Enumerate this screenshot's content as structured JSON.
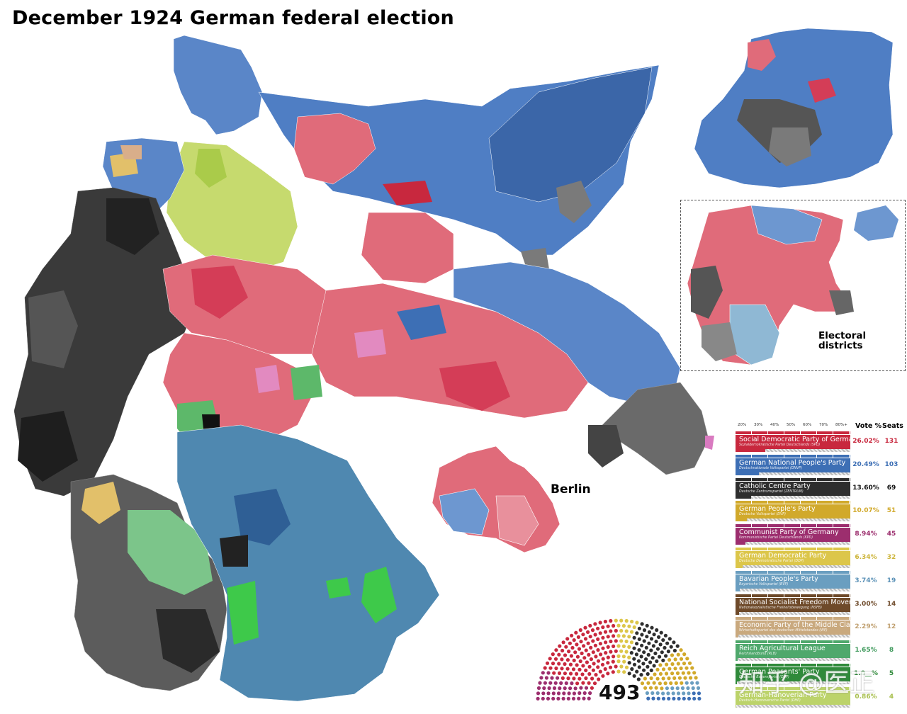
{
  "title": "December 1924 German federal election",
  "labels": {
    "berlin": "Berlin",
    "electoral_districts": "Electoral districts"
  },
  "legend": {
    "scale_ticks": [
      "20%",
      "30%",
      "40%",
      "50%",
      "60%",
      "70%",
      "80%+"
    ],
    "header_vote": "Vote %",
    "header_seats": "Seats",
    "parties": [
      {
        "name": "Social Democratic Party of Germany",
        "sub": "Sozialdemokratische Partei Deutschlands (SPD)",
        "vote": "26.02%",
        "seats": "131",
        "vote_fraction": 0.2602,
        "color": "#c8283e",
        "pctColor": "#c8283e"
      },
      {
        "name": "German National People's Party",
        "sub": "Deutschnationale Volkspartei (DNVP)",
        "vote": "20.49%",
        "seats": "103",
        "vote_fraction": 0.2049,
        "color": "#3d6fb5",
        "pctColor": "#3d6fb5"
      },
      {
        "name": "Catholic Centre Party",
        "sub": "Deutsche Zentrumspartei (ZENTRUM)",
        "vote": "13.60%",
        "seats": "69",
        "vote_fraction": 0.136,
        "color": "#2e2e2e",
        "pctColor": "#111111"
      },
      {
        "name": "German People's Party",
        "sub": "Deutsche Volkspartei (DVP)",
        "vote": "10.07%",
        "seats": "51",
        "vote_fraction": 0.1007,
        "color": "#d1a92b",
        "pctColor": "#d1a92b"
      },
      {
        "name": "Communist Party of Germany",
        "sub": "Kommunistische Partei Deutschlands (KPD)",
        "vote": "8.94%",
        "seats": "45",
        "vote_fraction": 0.0894,
        "color": "#9c2e6e",
        "pctColor": "#9c2e6e"
      },
      {
        "name": "German Democratic Party",
        "sub": "Deutsche Demokratische Partei (DDP)",
        "vote": "6.34%",
        "seats": "32",
        "vote_fraction": 0.0634,
        "color": "#dcc64a",
        "pctColor": "#cdb53a"
      },
      {
        "name": "Bavarian People's Party",
        "sub": "Bayerische Volkspartei (BVP)",
        "vote": "3.74%",
        "seats": "19",
        "vote_fraction": 0.0374,
        "color": "#6a9ec0",
        "pctColor": "#5d93b8"
      },
      {
        "name": "National Socialist Freedom Movement",
        "sub": "Nationalsozialistische Freiheitsbewegung (NSFB)",
        "vote": "3.00%",
        "seats": "14",
        "vote_fraction": 0.03,
        "color": "#6e4a2a",
        "pctColor": "#6e4a2a"
      },
      {
        "name": "Economic Party of the Middle Class",
        "sub": "Wirtschaftspartei des deutschen Mittelstandes (WP)",
        "vote": "2.29%",
        "seats": "12",
        "vote_fraction": 0.0229,
        "color": "#c9a97e",
        "pctColor": "#c0a070"
      },
      {
        "name": "Reich Agricultural League",
        "sub": "Reichslandbund (RLB)",
        "vote": "1.65%",
        "seats": "8",
        "vote_fraction": 0.0165,
        "color": "#4fa86c",
        "pctColor": "#3f9a5c"
      },
      {
        "name": "German Peasants' Party",
        "sub": "Deutsche Bauernpartei (DBP)",
        "vote": "1.0__%",
        "seats": "5",
        "vote_fraction": 0.0103,
        "color": "#2f8a3a",
        "pctColor": "#2f8a3a"
      },
      {
        "name": "German-Hanoverian Party",
        "sub": "Deutsch-Hannoversche Partei (DHP)",
        "vote": "0.86%",
        "seats": "4",
        "vote_fraction": 0.0086,
        "color": "#bcd36a",
        "pctColor": "#a9c04f"
      }
    ]
  },
  "parliament": {
    "total_seats": "493"
  },
  "watermark": "知乎 @医正",
  "colors": {
    "spd": "#e06b7a",
    "dnvp": "#5a86c8",
    "zentrum": "#444444",
    "dhp": "#c6da6e",
    "bvp": "#4f88b0",
    "rlb": "#5db86a"
  }
}
